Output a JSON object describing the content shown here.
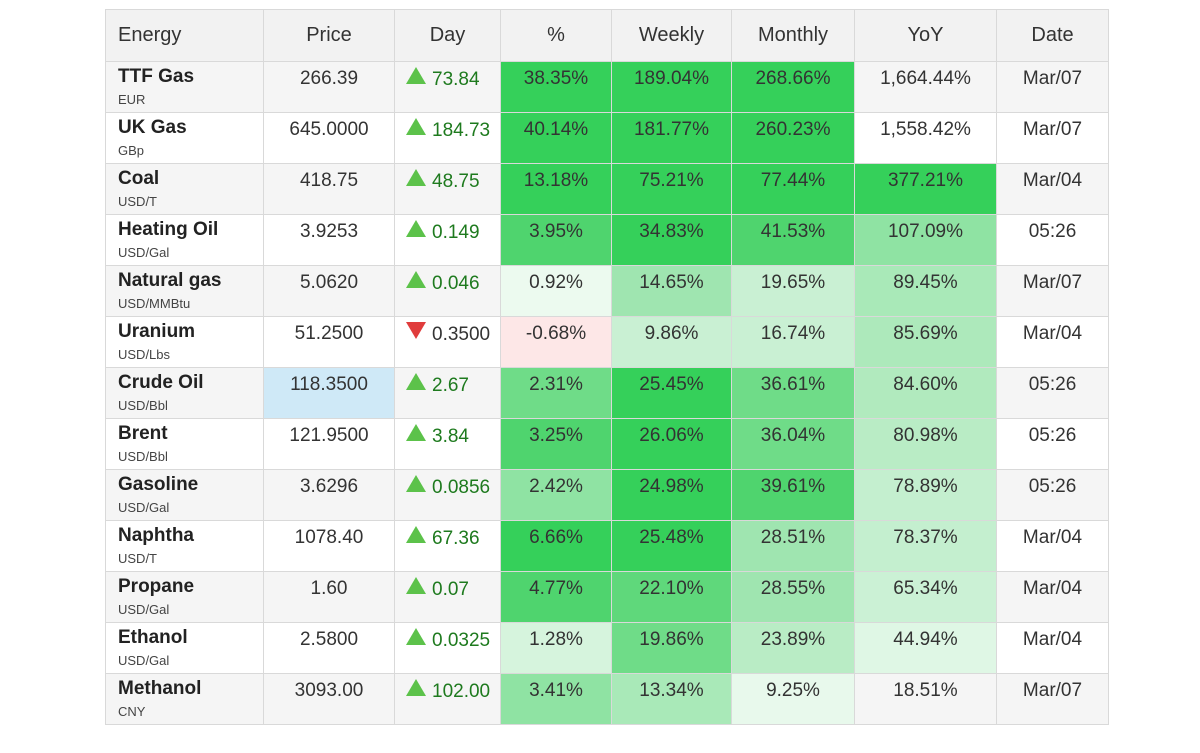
{
  "header": {
    "energy": "Energy",
    "price": "Price",
    "day": "Day",
    "pct": "%",
    "weekly": "Weekly",
    "monthly": "Monthly",
    "yoy": "YoY",
    "date": "Date"
  },
  "colors": {
    "up_arrow": "#5cc24a",
    "down_arrow": "#e03c3c",
    "highlight_price": "#cfe9f7"
  },
  "rows": [
    {
      "name": "TTF Gas",
      "unit": "EUR",
      "price": "266.39",
      "dir": "up",
      "day": "73.84",
      "pct": "38.35%",
      "weekly": "189.04%",
      "monthly": "268.66%",
      "yoy": "1,664.44%",
      "date": "Mar/07",
      "bg": {
        "pct": "#35d05a",
        "weekly": "#35d05a",
        "monthly": "#35d05a",
        "yoy": ""
      }
    },
    {
      "name": "UK Gas",
      "unit": "GBp",
      "price": "645.0000",
      "dir": "up",
      "day": "184.73",
      "pct": "40.14%",
      "weekly": "181.77%",
      "monthly": "260.23%",
      "yoy": "1,558.42%",
      "date": "Mar/07",
      "bg": {
        "pct": "#35d05a",
        "weekly": "#35d05a",
        "monthly": "#35d05a",
        "yoy": ""
      }
    },
    {
      "name": "Coal",
      "unit": "USD/T",
      "price": "418.75",
      "dir": "up",
      "day": "48.75",
      "pct": "13.18%",
      "weekly": "75.21%",
      "monthly": "77.44%",
      "yoy": "377.21%",
      "date": "Mar/04",
      "bg": {
        "pct": "#35d05a",
        "weekly": "#35d05a",
        "monthly": "#35d05a",
        "yoy": "#35d05a"
      }
    },
    {
      "name": "Heating Oil",
      "unit": "USD/Gal",
      "price": "3.9253",
      "dir": "up",
      "day": "0.149",
      "pct": "3.95%",
      "weekly": "34.83%",
      "monthly": "41.53%",
      "yoy": "107.09%",
      "date": "05:26",
      "bg": {
        "pct": "#4fd46e",
        "weekly": "#35d05a",
        "monthly": "#4fd46e",
        "yoy": "#8fe3a3"
      }
    },
    {
      "name": "Natural gas",
      "unit": "USD/MMBtu",
      "price": "5.0620",
      "dir": "up",
      "day": "0.046",
      "pct": "0.92%",
      "weekly": "14.65%",
      "monthly": "19.65%",
      "yoy": "89.45%",
      "date": "Mar/07",
      "bg": {
        "pct": "#ecfaef",
        "weekly": "#9fe5b0",
        "monthly": "#c9f0d3",
        "yoy": "#a9e9b8"
      }
    },
    {
      "name": "Uranium",
      "unit": "USD/Lbs",
      "price": "51.2500",
      "dir": "down",
      "day": "0.3500",
      "pct": "-0.68%",
      "weekly": "9.86%",
      "monthly": "16.74%",
      "yoy": "85.69%",
      "date": "Mar/04",
      "bg": {
        "pct": "#fde7e7",
        "weekly": "#c9f0d3",
        "monthly": "#c9f0d3",
        "yoy": "#ade9bb"
      }
    },
    {
      "name": "Crude Oil",
      "unit": "USD/Bbl",
      "price": "118.3500",
      "dir": "up",
      "day": "2.67",
      "pct": "2.31%",
      "weekly": "25.45%",
      "monthly": "36.61%",
      "yoy": "84.60%",
      "date": "05:26",
      "bg": {
        "pct": "#6fdc88",
        "weekly": "#35d05a",
        "monthly": "#6fdc88",
        "yoy": "#b1eabe"
      }
    },
    {
      "name": "Brent",
      "unit": "USD/Bbl",
      "price": "121.9500",
      "dir": "up",
      "day": "3.84",
      "pct": "3.25%",
      "weekly": "26.06%",
      "monthly": "36.04%",
      "yoy": "80.98%",
      "date": "05:26",
      "bg": {
        "pct": "#4fd46e",
        "weekly": "#35d05a",
        "monthly": "#6fdc88",
        "yoy": "#b9ecc5"
      }
    },
    {
      "name": "Gasoline",
      "unit": "USD/Gal",
      "price": "3.6296",
      "dir": "up",
      "day": "0.0856",
      "pct": "2.42%",
      "weekly": "24.98%",
      "monthly": "39.61%",
      "yoy": "78.89%",
      "date": "05:26",
      "bg": {
        "pct": "#8fe3a3",
        "weekly": "#35d05a",
        "monthly": "#4fd46e",
        "yoy": "#c4efcf"
      }
    },
    {
      "name": "Naphtha",
      "unit": "USD/T",
      "price": "1078.40",
      "dir": "up",
      "day": "67.36",
      "pct": "6.66%",
      "weekly": "25.48%",
      "monthly": "28.51%",
      "yoy": "78.37%",
      "date": "Mar/04",
      "bg": {
        "pct": "#35d05a",
        "weekly": "#35d05a",
        "monthly": "#9fe5b0",
        "yoy": "#c4efcf"
      }
    },
    {
      "name": "Propane",
      "unit": "USD/Gal",
      "price": "1.60",
      "dir": "up",
      "day": "0.07",
      "pct": "4.77%",
      "weekly": "22.10%",
      "monthly": "28.55%",
      "yoy": "65.34%",
      "date": "Mar/04",
      "bg": {
        "pct": "#4fd46e",
        "weekly": "#5fd87b",
        "monthly": "#9fe5b0",
        "yoy": "#cbf1d5"
      }
    },
    {
      "name": "Ethanol",
      "unit": "USD/Gal",
      "price": "2.5800",
      "dir": "up",
      "day": "0.0325",
      "pct": "1.28%",
      "weekly": "19.86%",
      "monthly": "23.89%",
      "yoy": "44.94%",
      "date": "Mar/04",
      "bg": {
        "pct": "#d6f4dd",
        "weekly": "#6fdc88",
        "monthly": "#b9ecc5",
        "yoy": "#dff7e5"
      }
    },
    {
      "name": "Methanol",
      "unit": "CNY",
      "price": "3093.00",
      "dir": "up",
      "day": "102.00",
      "pct": "3.41%",
      "weekly": "13.34%",
      "monthly": "9.25%",
      "yoy": "18.51%",
      "date": "Mar/07",
      "bg": {
        "pct": "#8fe3a3",
        "weekly": "#a9e9b8",
        "monthly": "#e8f9ec",
        "yoy": ""
      }
    }
  ]
}
